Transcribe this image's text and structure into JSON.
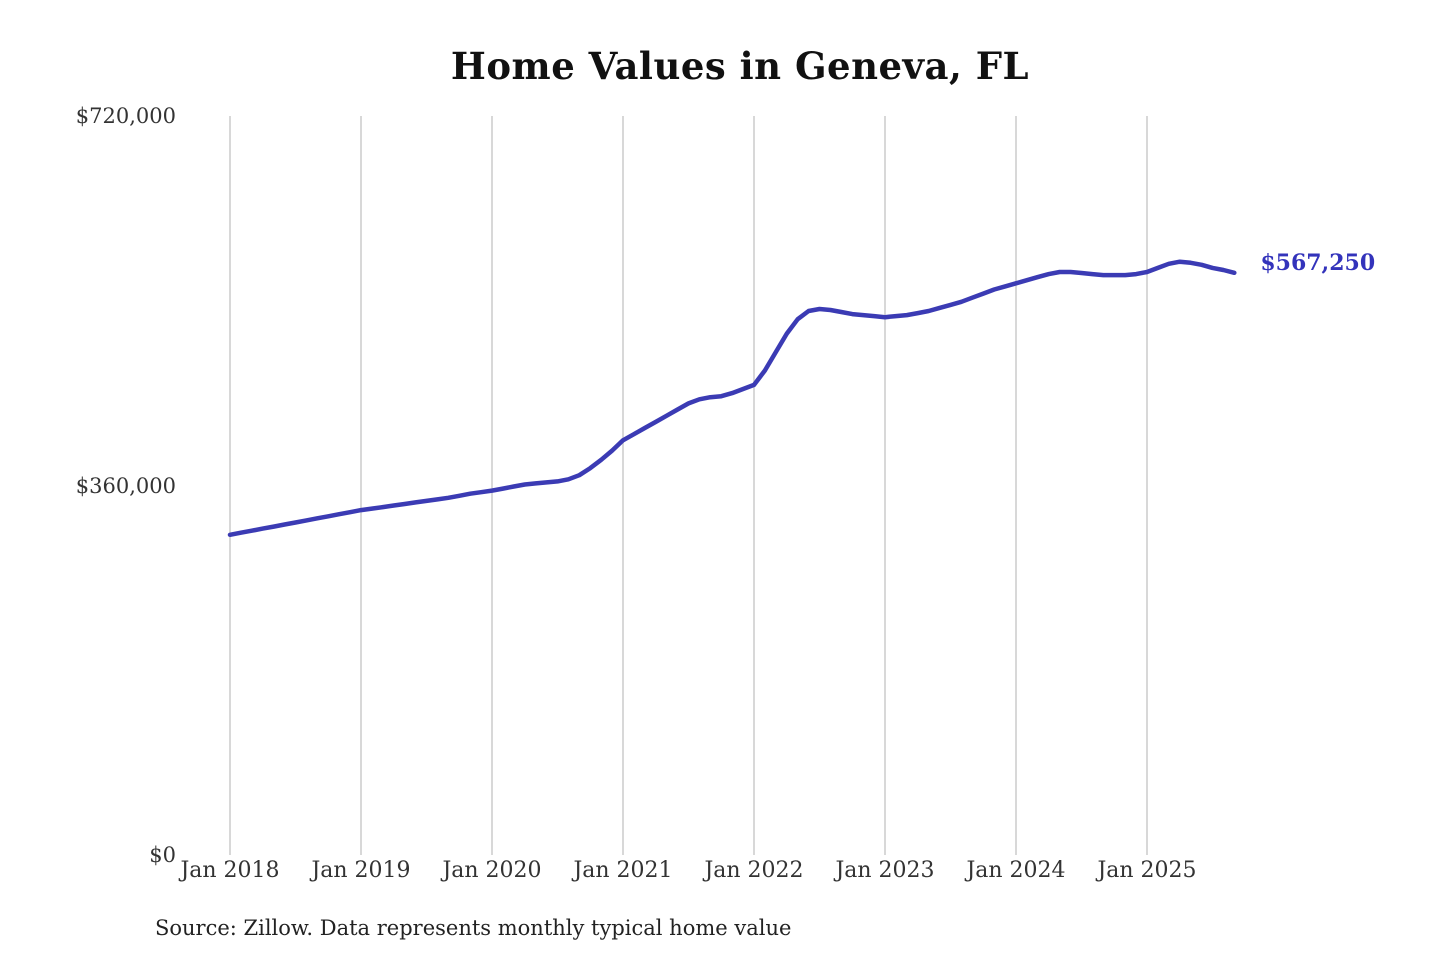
{
  "title": "Home Values in Geneva, FL",
  "source_note": "Source: Zillow. Data represents monthly typical home value",
  "colors": {
    "line": "#3b3bb4",
    "end_label": "#3333bb",
    "gridline": "#cccccc",
    "title_text": "#111111",
    "axis_text": "#333333",
    "source_text": "#222222",
    "background": "#ffffff"
  },
  "chart_data": {
    "type": "line",
    "title": "Home Values in Geneva, FL",
    "series_name": "Monthly typical home value",
    "frequency": "monthly",
    "start_month": "2018-01",
    "x_tick_labels": [
      "Jan 2018",
      "Jan 2019",
      "Jan 2020",
      "Jan 2021",
      "Jan 2022",
      "Jan 2023",
      "Jan 2024",
      "Jan 2025"
    ],
    "y_ticks": [
      {
        "label": "$0",
        "value": 0
      },
      {
        "label": "$360,000",
        "value": 360000
      },
      {
        "label": "$720,000",
        "value": 720000
      }
    ],
    "ylim": [
      0,
      720000
    ],
    "grid": "vertical-only",
    "legend": "none",
    "values": [
      312000,
      314000,
      316000,
      318000,
      320000,
      322000,
      324000,
      326000,
      328000,
      330000,
      332000,
      334000,
      336000,
      337500,
      339000,
      340500,
      342000,
      343500,
      345000,
      346500,
      348000,
      350000,
      352000,
      353500,
      355000,
      357000,
      359000,
      361000,
      362000,
      363000,
      364000,
      366000,
      370000,
      377000,
      385000,
      394000,
      404000,
      410000,
      416000,
      422000,
      428000,
      434000,
      440000,
      444000,
      446000,
      447000,
      450000,
      454000,
      458000,
      472000,
      490000,
      508000,
      522000,
      530000,
      532000,
      531000,
      529000,
      527000,
      526000,
      525000,
      524000,
      525000,
      526000,
      528000,
      530000,
      533000,
      536000,
      539000,
      543000,
      547000,
      551000,
      554000,
      557000,
      560000,
      563000,
      566000,
      568000,
      568000,
      567000,
      566000,
      565000,
      565000,
      565000,
      566000,
      568000,
      572000,
      576000,
      578000,
      577000,
      575000,
      572000,
      570000,
      567250
    ],
    "final_value": 567250,
    "final_value_label": "$567,250"
  }
}
